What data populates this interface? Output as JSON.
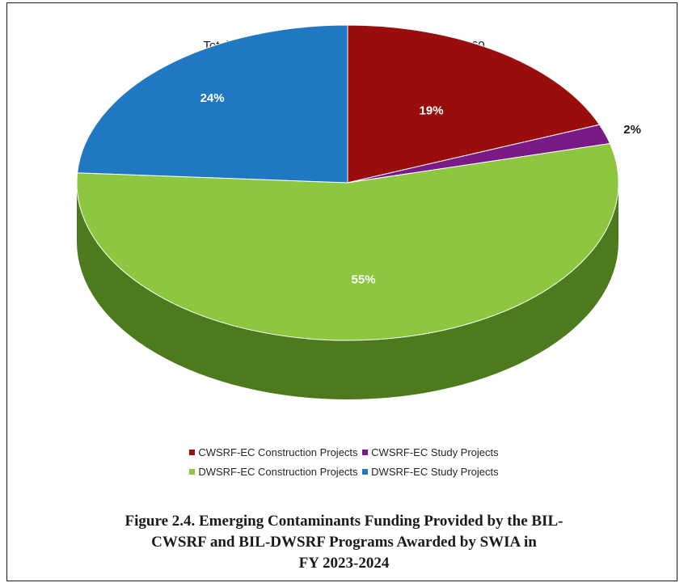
{
  "chart_data": {
    "type": "pie",
    "title": "Total Emerging Contaminant Funding = $27,334,960",
    "series": [
      {
        "name": "CWSRF-EC Construction Projects",
        "value": 19,
        "label": "19%",
        "color": "#9a0d0d",
        "side_color": "#5c0606"
      },
      {
        "name": "CWSRF-EC Study Projects",
        "value": 2,
        "label": "2%",
        "color": "#7a1a86",
        "side_color": "#3f0a47"
      },
      {
        "name": "DWSRF-EC Construction Projects",
        "value": 55,
        "label": "55%",
        "color": "#8dc63f",
        "side_color": "#4c7a1c"
      },
      {
        "name": "DWSRF-EC Study Projects",
        "value": 24,
        "label": "24%",
        "color": "#1f78c1",
        "side_color": "#0f4a80"
      }
    ],
    "legend_position": "bottom"
  },
  "caption": {
    "line1": "Figure 2.4. Emerging Contaminants Funding Provided by the BIL-",
    "line2": "CWSRF and BIL-DWSRF Programs Awarded by SWIA in",
    "line3": "FY 2023-2024"
  }
}
